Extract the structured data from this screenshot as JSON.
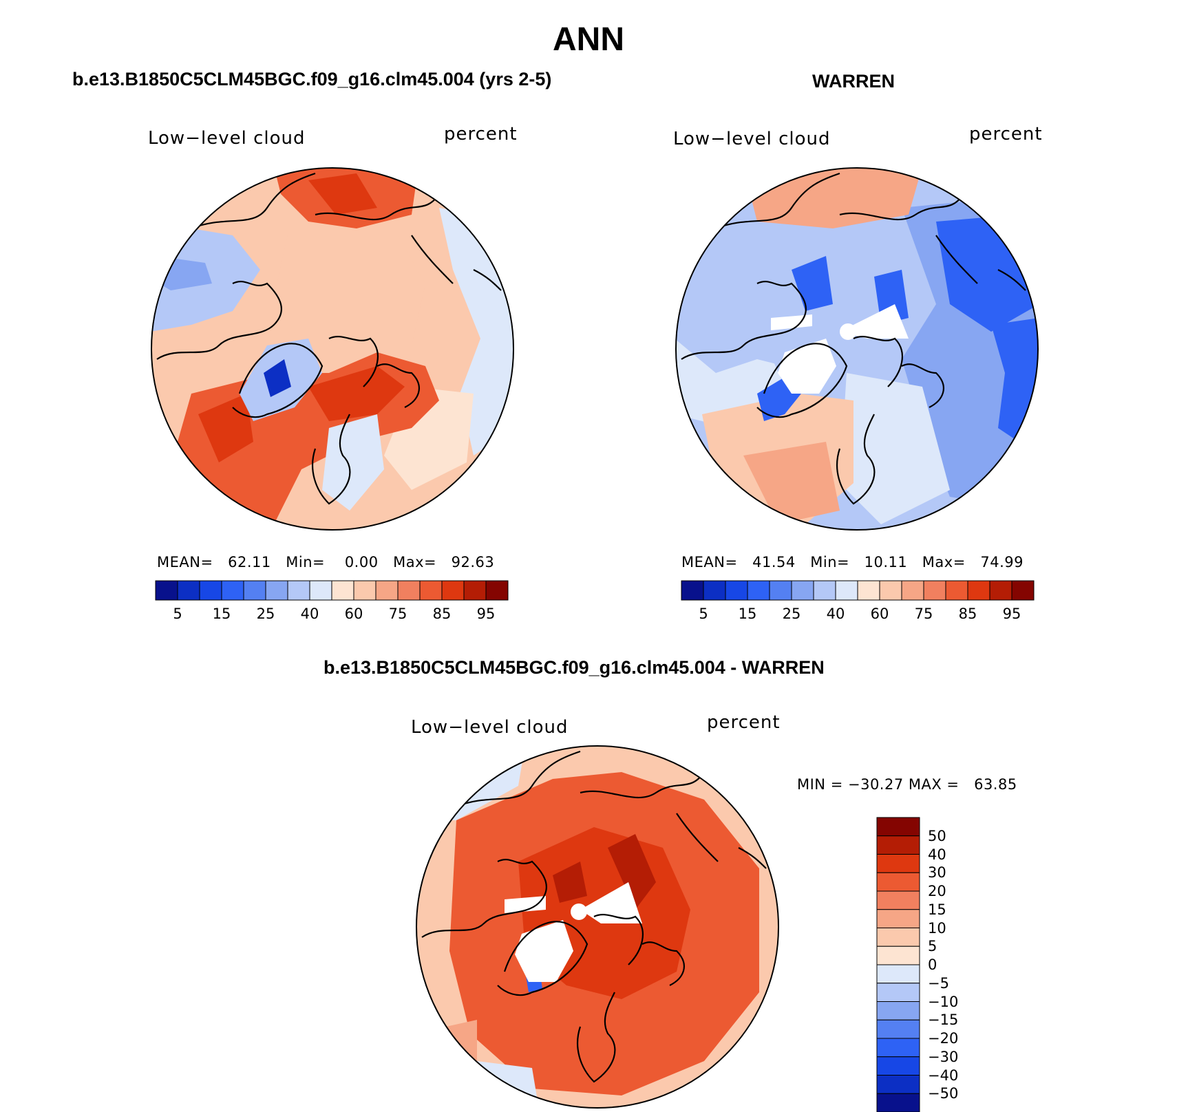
{
  "figure": {
    "title": "ANN"
  },
  "panels": {
    "model": {
      "title": "b.e13.B1850C5CLM45BGC.f09_g16.clm45.004 (yrs 2-5)",
      "variable": "Low−level cloud",
      "units": "percent",
      "stats": {
        "mean_label": "MEAN=",
        "mean": "62.11",
        "min_label": "Min=",
        "min": "0.00",
        "max_label": "Max=",
        "max": "92.63"
      }
    },
    "obs": {
      "title": "WARREN",
      "variable": "Low−level cloud",
      "units": "percent",
      "stats": {
        "mean_label": "MEAN=",
        "mean": "41.54",
        "min_label": "Min=",
        "min": "10.11",
        "max_label": "Max=",
        "max": "74.99"
      }
    },
    "diff": {
      "title": "b.e13.B1850C5CLM45BGC.f09_g16.clm45.004 - WARREN",
      "variable": "Low−level cloud",
      "units": "percent",
      "stats": {
        "min_label": "MIN =",
        "min": "−30.27",
        "max_label": "MAX =",
        "max": "63.85"
      }
    }
  },
  "colorbars": {
    "absolute": {
      "colors": [
        "#08118c",
        "#0c2fc4",
        "#1747e6",
        "#2e62f5",
        "#5480f2",
        "#87a6f2",
        "#b4c8f7",
        "#dde8fa",
        "#fde4d2",
        "#fbc9ad",
        "#f6a686",
        "#f1805f",
        "#ec5a32",
        "#de3810",
        "#b41d05",
        "#840501"
      ],
      "tick_labels": [
        "5",
        "15",
        "25",
        "40",
        "60",
        "75",
        "85",
        "95"
      ]
    },
    "difference": {
      "colors": [
        "#840501",
        "#b41d05",
        "#de3810",
        "#ec5a32",
        "#f1805f",
        "#f6a686",
        "#fbc9ad",
        "#fde4d2",
        "#dde8fa",
        "#b4c8f7",
        "#87a6f2",
        "#5480f2",
        "#2e62f5",
        "#1747e6",
        "#0c2fc4",
        "#08118c"
      ],
      "tick_labels": [
        "50",
        "40",
        "30",
        "20",
        "15",
        "10",
        "5",
        "0",
        "−5",
        "−10",
        "−15",
        "−20",
        "−30",
        "−40",
        "−50"
      ]
    }
  },
  "map_palette": {
    "ocean_light": "#fbc9ad",
    "ocean_mid": "#f6a686",
    "warm": "#ec5a32",
    "deep_warm": "#de3810",
    "darkest_warm": "#b41d05",
    "cool_light": "#dde8fa",
    "cool_mid": "#b4c8f7",
    "cool": "#87a6f2",
    "cool_deep": "#2e62f5",
    "cool_darkest": "#0c2fc4",
    "pale": "#fde4d2",
    "missing": "#ffffff",
    "coast": "#000000"
  }
}
